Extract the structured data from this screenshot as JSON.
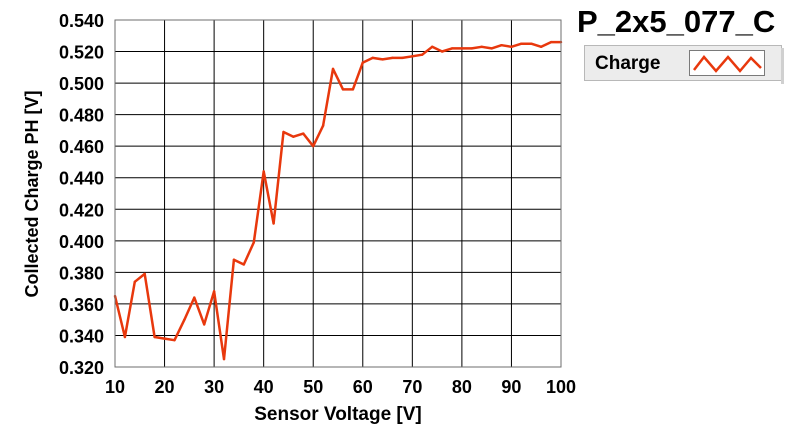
{
  "chart_data": {
    "type": "line",
    "title": "P_2x5_077_C",
    "xlabel": "Sensor Voltage [V]",
    "ylabel": "Collected Charge PH [V]",
    "xlim": [
      10,
      100
    ],
    "ylim": [
      0.32,
      0.54
    ],
    "xticks": [
      10,
      20,
      30,
      40,
      50,
      60,
      70,
      80,
      90,
      100
    ],
    "xtick_labels": [
      "10",
      "20",
      "30",
      "40",
      "50",
      "60",
      "70",
      "80",
      "90",
      "100"
    ],
    "yticks": [
      0.32,
      0.34,
      0.36,
      0.38,
      0.4,
      0.42,
      0.44,
      0.46,
      0.48,
      0.5,
      0.52,
      0.54
    ],
    "ytick_labels": [
      "0.320",
      "0.340",
      "0.360",
      "0.380",
      "0.400",
      "0.420",
      "0.440",
      "0.460",
      "0.480",
      "0.500",
      "0.520",
      "0.540"
    ],
    "grid": true,
    "legend_position": "top-right",
    "series": [
      {
        "name": "Charge",
        "color": "#e8380d",
        "x": [
          10,
          12,
          14,
          16,
          18,
          20,
          22,
          24,
          26,
          28,
          30,
          32,
          34,
          36,
          38,
          40,
          42,
          44,
          46,
          48,
          50,
          52,
          54,
          56,
          58,
          60,
          62,
          64,
          66,
          68,
          70,
          72,
          74,
          76,
          78,
          80,
          82,
          84,
          86,
          88,
          90,
          92,
          94,
          96,
          98,
          100
        ],
        "y": [
          0.365,
          0.339,
          0.374,
          0.379,
          0.339,
          0.338,
          0.337,
          0.35,
          0.364,
          0.347,
          0.368,
          0.325,
          0.388,
          0.385,
          0.399,
          0.444,
          0.411,
          0.469,
          0.466,
          0.468,
          0.46,
          0.473,
          0.509,
          0.496,
          0.496,
          0.513,
          0.516,
          0.515,
          0.516,
          0.516,
          0.517,
          0.518,
          0.523,
          0.52,
          0.522,
          0.522,
          0.522,
          0.523,
          0.522,
          0.524,
          0.523,
          0.525,
          0.525,
          0.523,
          0.526,
          0.526
        ]
      }
    ]
  }
}
